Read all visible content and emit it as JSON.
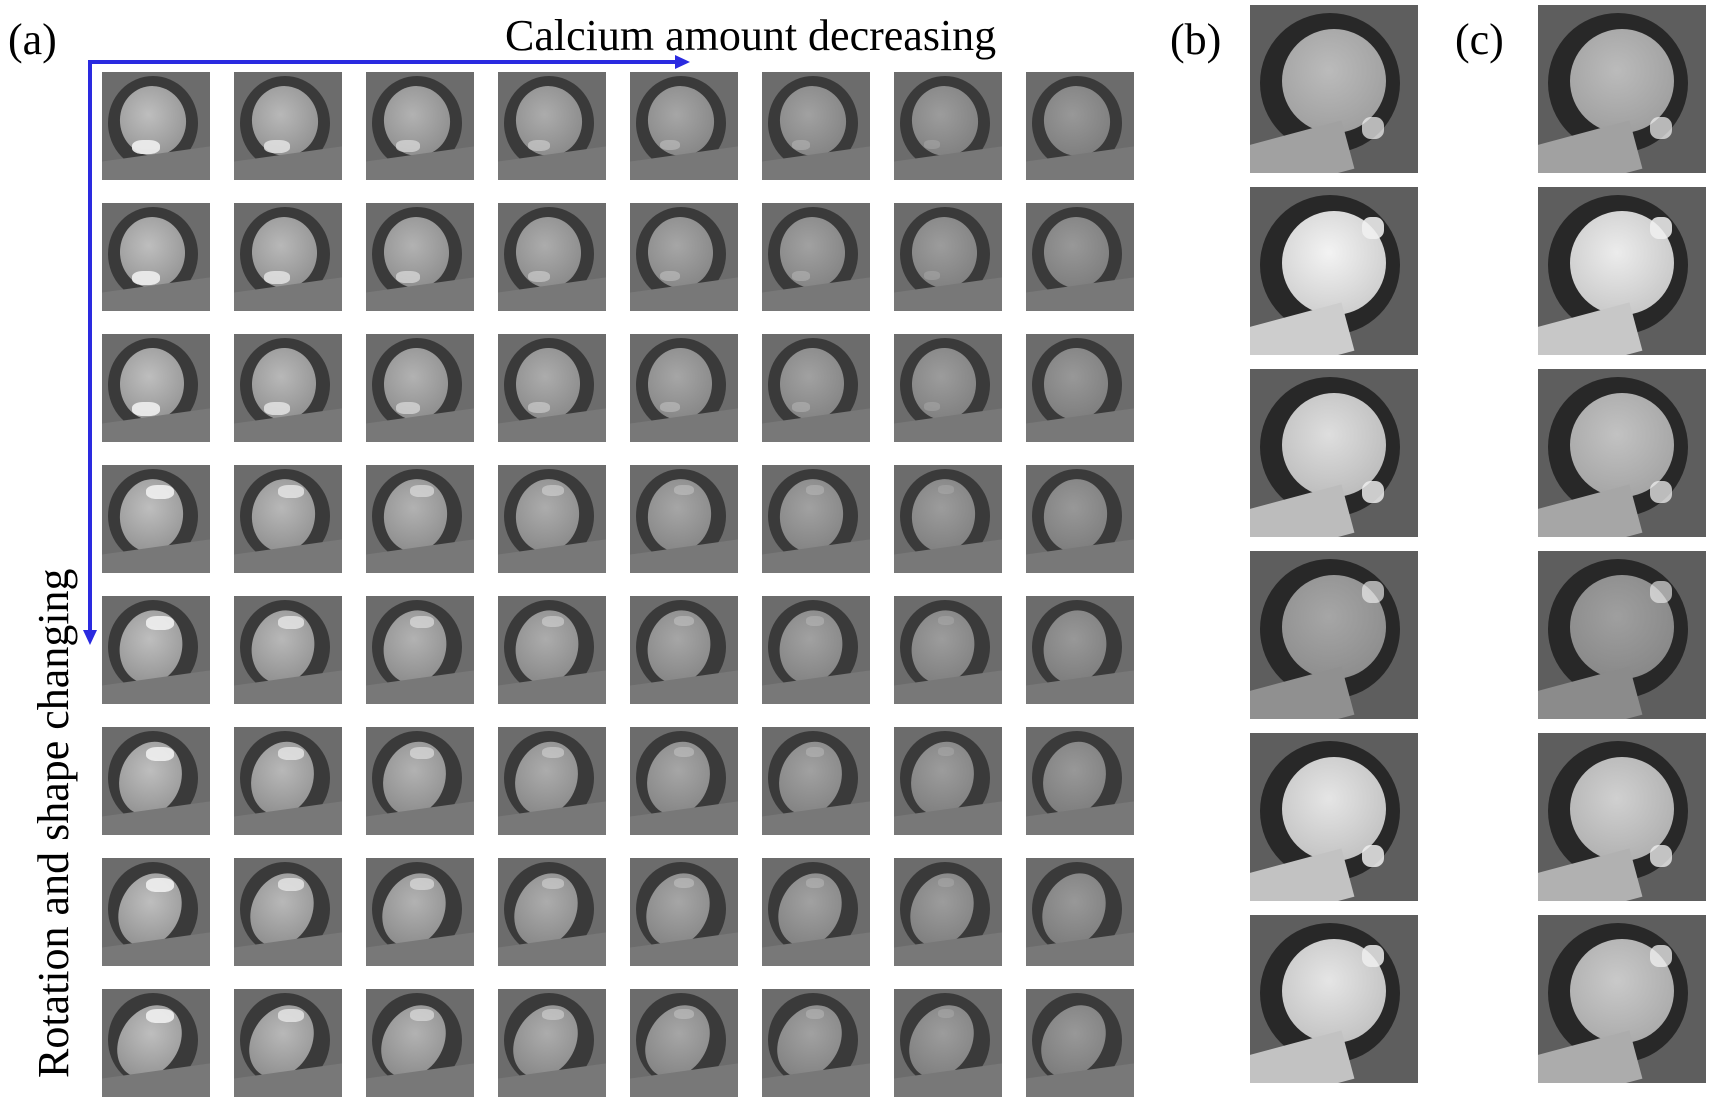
{
  "panels": {
    "a": "(a)",
    "b": "(b)",
    "c": "(c)"
  },
  "axes": {
    "horizontal_label": "Calcium amount decreasing",
    "vertical_label": "Rotation and shape changing"
  },
  "colors": {
    "arrow": "#2a2ae0"
  },
  "grid": {
    "rows": 8,
    "cols": 8,
    "calcium_intensity_by_col": [
      1.0,
      0.85,
      0.7,
      0.55,
      0.4,
      0.28,
      0.15,
      0.05
    ]
  },
  "panel_b": {
    "tiles": 6,
    "brightness": [
      0.55,
      0.95,
      0.8,
      0.4,
      0.85,
      0.85
    ]
  },
  "panel_c": {
    "tiles": 6,
    "brightness": [
      0.55,
      0.9,
      0.6,
      0.35,
      0.7,
      0.65
    ]
  }
}
